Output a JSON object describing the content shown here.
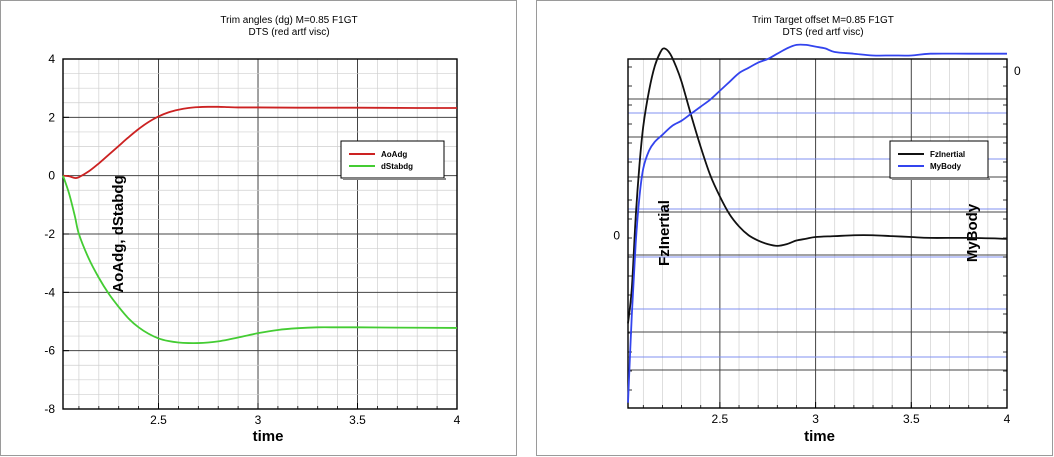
{
  "chart_data": [
    {
      "type": "line",
      "title": "Trim angles (dg) M=0.85 F1GT",
      "subtitle": "DTS (red artf visc)",
      "xlabel": "time",
      "ylabel": "AoAdg, dStabdg",
      "xlim": [
        2.02,
        4.0
      ],
      "ylim": [
        -8,
        4
      ],
      "xticks": [
        2.5,
        3,
        3.5,
        4
      ],
      "xtick_labels": [
        "2.5",
        "3",
        "3.5",
        "4"
      ],
      "yticks": [
        -8,
        -6,
        -4,
        -2,
        0,
        2,
        4
      ],
      "ytick_labels": [
        "-8",
        "-6",
        "-4",
        "-2",
        "0",
        "2",
        "4"
      ],
      "grid": true,
      "legend_position": "right",
      "series": [
        {
          "name": "AoAdg",
          "color": "#cc2222",
          "x": [
            2.02,
            2.05,
            2.08,
            2.1,
            2.15,
            2.2,
            2.25,
            2.3,
            2.35,
            2.4,
            2.45,
            2.5,
            2.55,
            2.6,
            2.65,
            2.7,
            2.75,
            2.8,
            2.85,
            2.9,
            3.0,
            3.2,
            3.5,
            3.8,
            4.0
          ],
          "y": [
            0.0,
            -0.02,
            -0.08,
            -0.05,
            0.15,
            0.42,
            0.72,
            1.02,
            1.32,
            1.6,
            1.84,
            2.03,
            2.17,
            2.26,
            2.32,
            2.35,
            2.36,
            2.36,
            2.35,
            2.34,
            2.34,
            2.33,
            2.33,
            2.32,
            2.32
          ]
        },
        {
          "name": "dStabdg",
          "color": "#44cc33",
          "x": [
            2.02,
            2.05,
            2.08,
            2.1,
            2.15,
            2.2,
            2.25,
            2.3,
            2.35,
            2.4,
            2.45,
            2.5,
            2.55,
            2.6,
            2.65,
            2.7,
            2.75,
            2.8,
            2.85,
            2.9,
            3.0,
            3.1,
            3.2,
            3.3,
            3.4,
            3.5,
            3.7,
            4.0
          ],
          "y": [
            0.0,
            -0.6,
            -1.4,
            -2.0,
            -2.85,
            -3.5,
            -4.05,
            -4.5,
            -4.9,
            -5.2,
            -5.42,
            -5.58,
            -5.67,
            -5.72,
            -5.74,
            -5.74,
            -5.72,
            -5.68,
            -5.62,
            -5.55,
            -5.4,
            -5.29,
            -5.23,
            -5.2,
            -5.2,
            -5.2,
            -5.21,
            -5.22
          ]
        }
      ]
    },
    {
      "type": "line",
      "title": "Trim Target offset M=0.85 F1GT",
      "subtitle": "DTS (red artf visc)",
      "xlabel": "time",
      "left_axis_label": "FzInertial",
      "right_axis_label": "MyBody",
      "xlim": [
        2.02,
        4.0
      ],
      "xticks": [
        2.5,
        3,
        3.5,
        4
      ],
      "xtick_labels": [
        "2.5",
        "3",
        "3.5",
        "4"
      ],
      "left_ylim": [
        -0.98,
        1.0
      ],
      "left_yticks": [
        0
      ],
      "left_ytick_labels": [
        "0"
      ],
      "right_ylim": [
        -0.98,
        1.0
      ],
      "right_yticks": [
        0
      ],
      "right_ytick_labels": [
        "0"
      ],
      "grid": true,
      "legend_position": "right",
      "series": [
        {
          "name": "FzInertial",
          "color": "#111111",
          "axis": "left",
          "x": [
            2.02,
            2.04,
            2.06,
            2.08,
            2.1,
            2.13,
            2.16,
            2.19,
            2.21,
            2.24,
            2.27,
            2.3,
            2.35,
            2.4,
            2.45,
            2.5,
            2.55,
            2.6,
            2.65,
            2.7,
            2.75,
            2.8,
            2.85,
            2.9,
            2.95,
            3.0,
            3.1,
            3.2,
            3.3,
            3.4,
            3.5,
            3.6,
            3.8,
            4.0
          ],
          "y": [
            -0.5,
            -0.3,
            0.1,
            0.4,
            0.62,
            0.82,
            0.96,
            1.04,
            1.06,
            1.03,
            0.96,
            0.87,
            0.68,
            0.5,
            0.34,
            0.22,
            0.12,
            0.05,
            0.0,
            -0.03,
            -0.05,
            -0.06,
            -0.05,
            -0.03,
            -0.02,
            -0.01,
            -0.005,
            0.0,
            0.0,
            -0.005,
            -0.01,
            -0.015,
            -0.015,
            -0.02
          ]
        },
        {
          "name": "MyBody",
          "color": "#3344ee",
          "axis": "right",
          "x": [
            2.02,
            2.04,
            2.06,
            2.08,
            2.1,
            2.13,
            2.16,
            2.2,
            2.25,
            2.3,
            2.35,
            2.4,
            2.45,
            2.5,
            2.55,
            2.6,
            2.65,
            2.7,
            2.75,
            2.8,
            2.85,
            2.9,
            2.95,
            3.0,
            3.05,
            3.1,
            3.2,
            3.3,
            3.4,
            3.5,
            3.6,
            3.8,
            4.0
          ],
          "y": [
            -0.95,
            -0.45,
            -0.05,
            0.22,
            0.38,
            0.48,
            0.53,
            0.57,
            0.62,
            0.65,
            0.69,
            0.73,
            0.77,
            0.82,
            0.87,
            0.92,
            0.95,
            0.98,
            1.0,
            1.03,
            1.06,
            1.08,
            1.08,
            1.07,
            1.06,
            1.04,
            1.03,
            1.02,
            1.02,
            1.02,
            1.03,
            1.03,
            1.03
          ]
        }
      ]
    }
  ]
}
